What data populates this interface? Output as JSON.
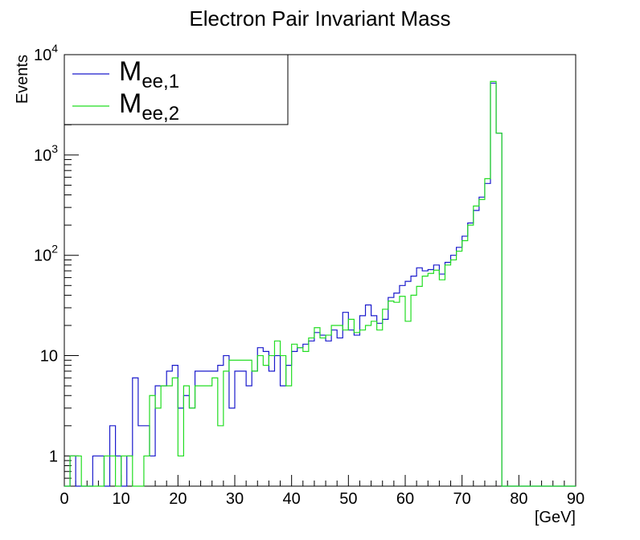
{
  "chart_data": {
    "type": "histogram-step",
    "title": "Electron Pair Invariant Mass",
    "xlabel": "[GeV]",
    "ylabel": "Events",
    "yscale": "log",
    "xlim": [
      0,
      90
    ],
    "ylim": [
      0.5,
      10000
    ],
    "bin_width": 1,
    "x_ticks": [
      0,
      10,
      20,
      30,
      40,
      50,
      60,
      70,
      80,
      90
    ],
    "y_tick_labels": [
      {
        "value": 1,
        "base": "1",
        "exp": ""
      },
      {
        "value": 10,
        "base": "10",
        "exp": ""
      },
      {
        "value": 100,
        "base": "10",
        "exp": "2"
      },
      {
        "value": 1000,
        "base": "10",
        "exp": "3"
      },
      {
        "value": 10000,
        "base": "10",
        "exp": "4"
      }
    ],
    "legend_position": "top-left",
    "series": [
      {
        "name": "M",
        "subscript": "ee,1",
        "color": "#1a1acc",
        "bin_edges_start": 0,
        "values": [
          0,
          1,
          0,
          0,
          0,
          1,
          1,
          0,
          2,
          1,
          0,
          1,
          6,
          2,
          2,
          1,
          5,
          5,
          7,
          8,
          3,
          4,
          3,
          7,
          7,
          7,
          7,
          8,
          10,
          3,
          7,
          7,
          5,
          7,
          12,
          11,
          7,
          10,
          5,
          8,
          11,
          12,
          13,
          14,
          17,
          16,
          14,
          18,
          15,
          27,
          18,
          16,
          25,
          32,
          25,
          21,
          23,
          38,
          42,
          50,
          55,
          62,
          75,
          70,
          72,
          80,
          65,
          85,
          100,
          120,
          155,
          210,
          280,
          380,
          520,
          5200,
          1650,
          0,
          0,
          0,
          0,
          0,
          0,
          0,
          0,
          0,
          0,
          0,
          0,
          0
        ]
      },
      {
        "name": "M",
        "subscript": "ee,2",
        "color": "#22dd22",
        "bin_edges_start": 0,
        "values": [
          0,
          1,
          1,
          0,
          0,
          0,
          0,
          1,
          1,
          0,
          1,
          1,
          0,
          0,
          1,
          4,
          3,
          5,
          5,
          6,
          1,
          5,
          3,
          5,
          5,
          5,
          6,
          2,
          7,
          9,
          9,
          9,
          9,
          7,
          10,
          8,
          10,
          14,
          10,
          5,
          13,
          12,
          11,
          15,
          19,
          15,
          16,
          20,
          20,
          18,
          23,
          17,
          18,
          20,
          22,
          18,
          29,
          35,
          34,
          39,
          22,
          40,
          49,
          62,
          66,
          71,
          57,
          80,
          90,
          110,
          140,
          200,
          310,
          360,
          580,
          5400,
          1650,
          0,
          0,
          0,
          0,
          0,
          0,
          0,
          0,
          0,
          0,
          0,
          0,
          0
        ]
      }
    ]
  }
}
